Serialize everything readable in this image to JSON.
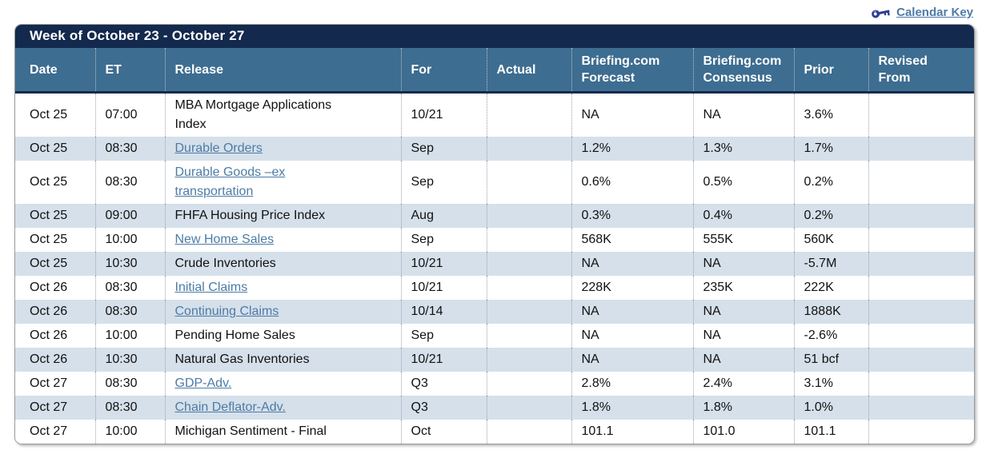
{
  "topbar": {
    "calendar_key_label": "Calendar Key"
  },
  "table": {
    "title": "Week of October 23 - October 27",
    "columns": [
      "Date",
      "ET",
      "Release",
      "For",
      "Actual",
      "Briefing.com\nForecast",
      "Briefing.com\nConsensus",
      "Prior",
      "Revised\nFrom"
    ],
    "rows": [
      {
        "date": "Oct 25",
        "et": "07:00",
        "release": "MBA Mortgage Applications\nIndex",
        "is_link": false,
        "for": "10/21",
        "actual": "",
        "forecast": "NA",
        "consensus": "NA",
        "prior": "3.6%",
        "revised_from": ""
      },
      {
        "date": "Oct 25",
        "et": "08:30",
        "release": "Durable Orders",
        "is_link": true,
        "for": "Sep",
        "actual": "",
        "forecast": "1.2%",
        "consensus": "1.3%",
        "prior": "1.7%",
        "revised_from": ""
      },
      {
        "date": "Oct 25",
        "et": "08:30",
        "release": "Durable Goods –ex\ntransportation",
        "is_link": true,
        "for": "Sep",
        "actual": "",
        "forecast": "0.6%",
        "consensus": "0.5%",
        "prior": "0.2%",
        "revised_from": ""
      },
      {
        "date": "Oct 25",
        "et": "09:00",
        "release": "FHFA Housing Price Index",
        "is_link": false,
        "for": "Aug",
        "actual": "",
        "forecast": "0.3%",
        "consensus": "0.4%",
        "prior": "0.2%",
        "revised_from": ""
      },
      {
        "date": "Oct 25",
        "et": "10:00",
        "release": "New Home Sales",
        "is_link": true,
        "for": "Sep",
        "actual": "",
        "forecast": "568K",
        "consensus": "555K",
        "prior": "560K",
        "revised_from": ""
      },
      {
        "date": "Oct 25",
        "et": "10:30",
        "release": "Crude Inventories",
        "is_link": false,
        "for": "10/21",
        "actual": "",
        "forecast": "NA",
        "consensus": "NA",
        "prior": "-5.7M",
        "revised_from": ""
      },
      {
        "date": "Oct 26",
        "et": "08:30",
        "release": "Initial Claims",
        "is_link": true,
        "for": "10/21",
        "actual": "",
        "forecast": "228K",
        "consensus": "235K",
        "prior": "222K",
        "revised_from": ""
      },
      {
        "date": "Oct 26",
        "et": "08:30",
        "release": "Continuing Claims",
        "is_link": true,
        "for": "10/14",
        "actual": "",
        "forecast": "NA",
        "consensus": "NA",
        "prior": "1888K",
        "revised_from": ""
      },
      {
        "date": "Oct 26",
        "et": "10:00",
        "release": "Pending Home Sales",
        "is_link": false,
        "for": "Sep",
        "actual": "",
        "forecast": "NA",
        "consensus": "NA",
        "prior": "-2.6%",
        "revised_from": ""
      },
      {
        "date": "Oct 26",
        "et": "10:30",
        "release": "Natural Gas Inventories",
        "is_link": false,
        "for": "10/21",
        "actual": "",
        "forecast": "NA",
        "consensus": "NA",
        "prior": "51 bcf",
        "revised_from": ""
      },
      {
        "date": "Oct 27",
        "et": "08:30",
        "release": "GDP-Adv.",
        "is_link": true,
        "for": "Q3",
        "actual": "",
        "forecast": "2.8%",
        "consensus": "2.4%",
        "prior": "3.1%",
        "revised_from": ""
      },
      {
        "date": "Oct 27",
        "et": "08:30",
        "release": "Chain Deflator-Adv.",
        "is_link": true,
        "for": "Q3",
        "actual": "",
        "forecast": "1.8%",
        "consensus": "1.8%",
        "prior": "1.0%",
        "revised_from": ""
      },
      {
        "date": "Oct 27",
        "et": "10:00",
        "release": "Michigan Sentiment - Final",
        "is_link": false,
        "for": "Oct",
        "actual": "",
        "forecast": "101.1",
        "consensus": "101.0",
        "prior": "101.1",
        "revised_from": ""
      }
    ]
  },
  "colors": {
    "navy": "#13294e",
    "header_blue": "#3d6d90",
    "stripe": "#d5e0ea",
    "link": "#4d7ba6",
    "key_icon": "#2c3d92"
  }
}
